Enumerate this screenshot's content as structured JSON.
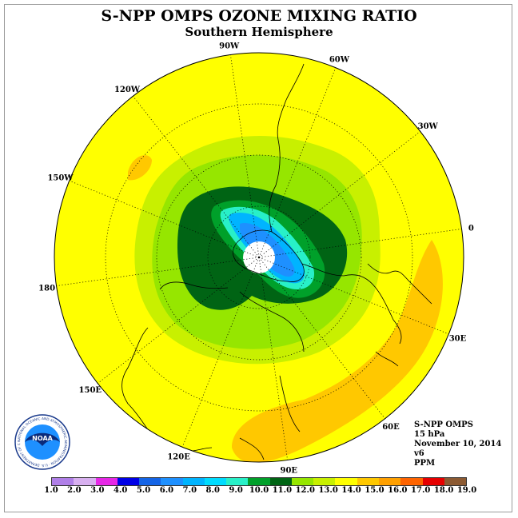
{
  "header": {
    "title": "S-NPP OMPS OZONE MIXING RATIO",
    "subtitle": "Southern Hemisphere"
  },
  "info": {
    "instrument": "S-NPP OMPS",
    "level": "15 hPa",
    "date": "November 10, 2014",
    "version": "v6",
    "units": "PPM"
  },
  "longitude_labels": [
    {
      "text": "0",
      "lon": 0
    },
    {
      "text": "30E",
      "lon": 30
    },
    {
      "text": "60E",
      "lon": 60
    },
    {
      "text": "90E",
      "lon": 90
    },
    {
      "text": "120E",
      "lon": 120
    },
    {
      "text": "150E",
      "lon": 150
    },
    {
      "text": "180",
      "lon": 180
    },
    {
      "text": "150W",
      "lon": -150
    },
    {
      "text": "120W",
      "lon": -120
    },
    {
      "text": "90W",
      "lon": -90
    },
    {
      "text": "60W",
      "lon": -60
    },
    {
      "text": "30W",
      "lon": -30
    }
  ],
  "legend": {
    "labels": [
      "1.0",
      "2.0",
      "3.0",
      "4.0",
      "5.0",
      "6.0",
      "7.0",
      "8.0",
      "9.0",
      "10.0",
      "11.0",
      "12.0",
      "13.0",
      "14.0",
      "15.0",
      "16.0",
      "17.0",
      "18.0",
      "19.0"
    ],
    "colors": [
      "#b07fe8",
      "#d8b0f0",
      "#e628e6",
      "#0000e6",
      "#1464e6",
      "#1e90ff",
      "#00b4ff",
      "#00dcff",
      "#28f0c8",
      "#00a02a",
      "#006414",
      "#96e600",
      "#c8f000",
      "#ffff00",
      "#ffc800",
      "#ffa000",
      "#ff6400",
      "#e60000",
      "#8c5a32"
    ]
  },
  "logo": {
    "text": "NOAA",
    "ring_text": "NATIONAL OCEANIC AND ATMOSPHERIC ADMINISTRATION · U.S. DEPARTMENT OF COMMERCE"
  }
}
